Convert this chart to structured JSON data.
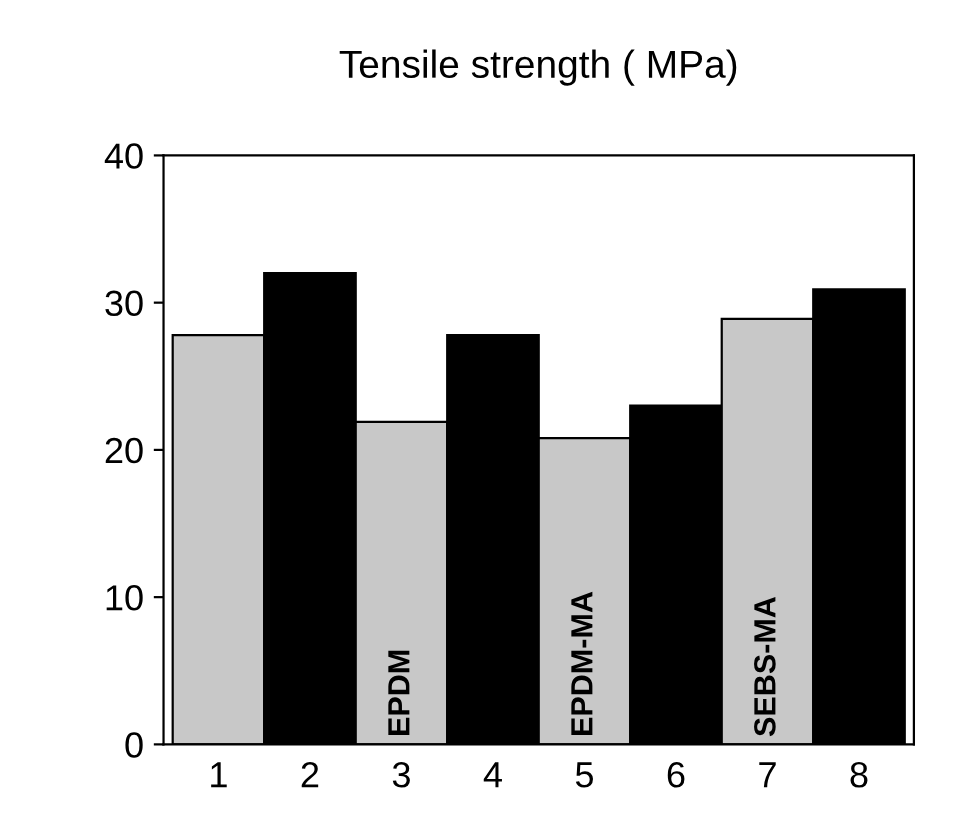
{
  "chart_data": {
    "type": "bar",
    "title": "Tensile strength ( MPa)",
    "categories": [
      "1",
      "2",
      "3",
      "4",
      "5",
      "6",
      "7",
      "8"
    ],
    "values": [
      27.8,
      32.0,
      21.9,
      27.8,
      20.8,
      23.0,
      28.9,
      30.9
    ],
    "colors": [
      "#c8c8c8",
      "#000000",
      "#c8c8c8",
      "#000000",
      "#c8c8c8",
      "#000000",
      "#c8c8c8",
      "#000000"
    ],
    "annotations": [
      {
        "text": "EPDM",
        "x": "3",
        "y": 0
      },
      {
        "text": "EPDM-MA",
        "x": "5",
        "y": 0
      },
      {
        "text": "SEBS-MA",
        "x": "7",
        "y": 0
      }
    ],
    "ylim": [
      0,
      40
    ],
    "yticks": [
      0,
      10,
      20,
      30,
      40
    ],
    "grid": false,
    "legend": false
  }
}
